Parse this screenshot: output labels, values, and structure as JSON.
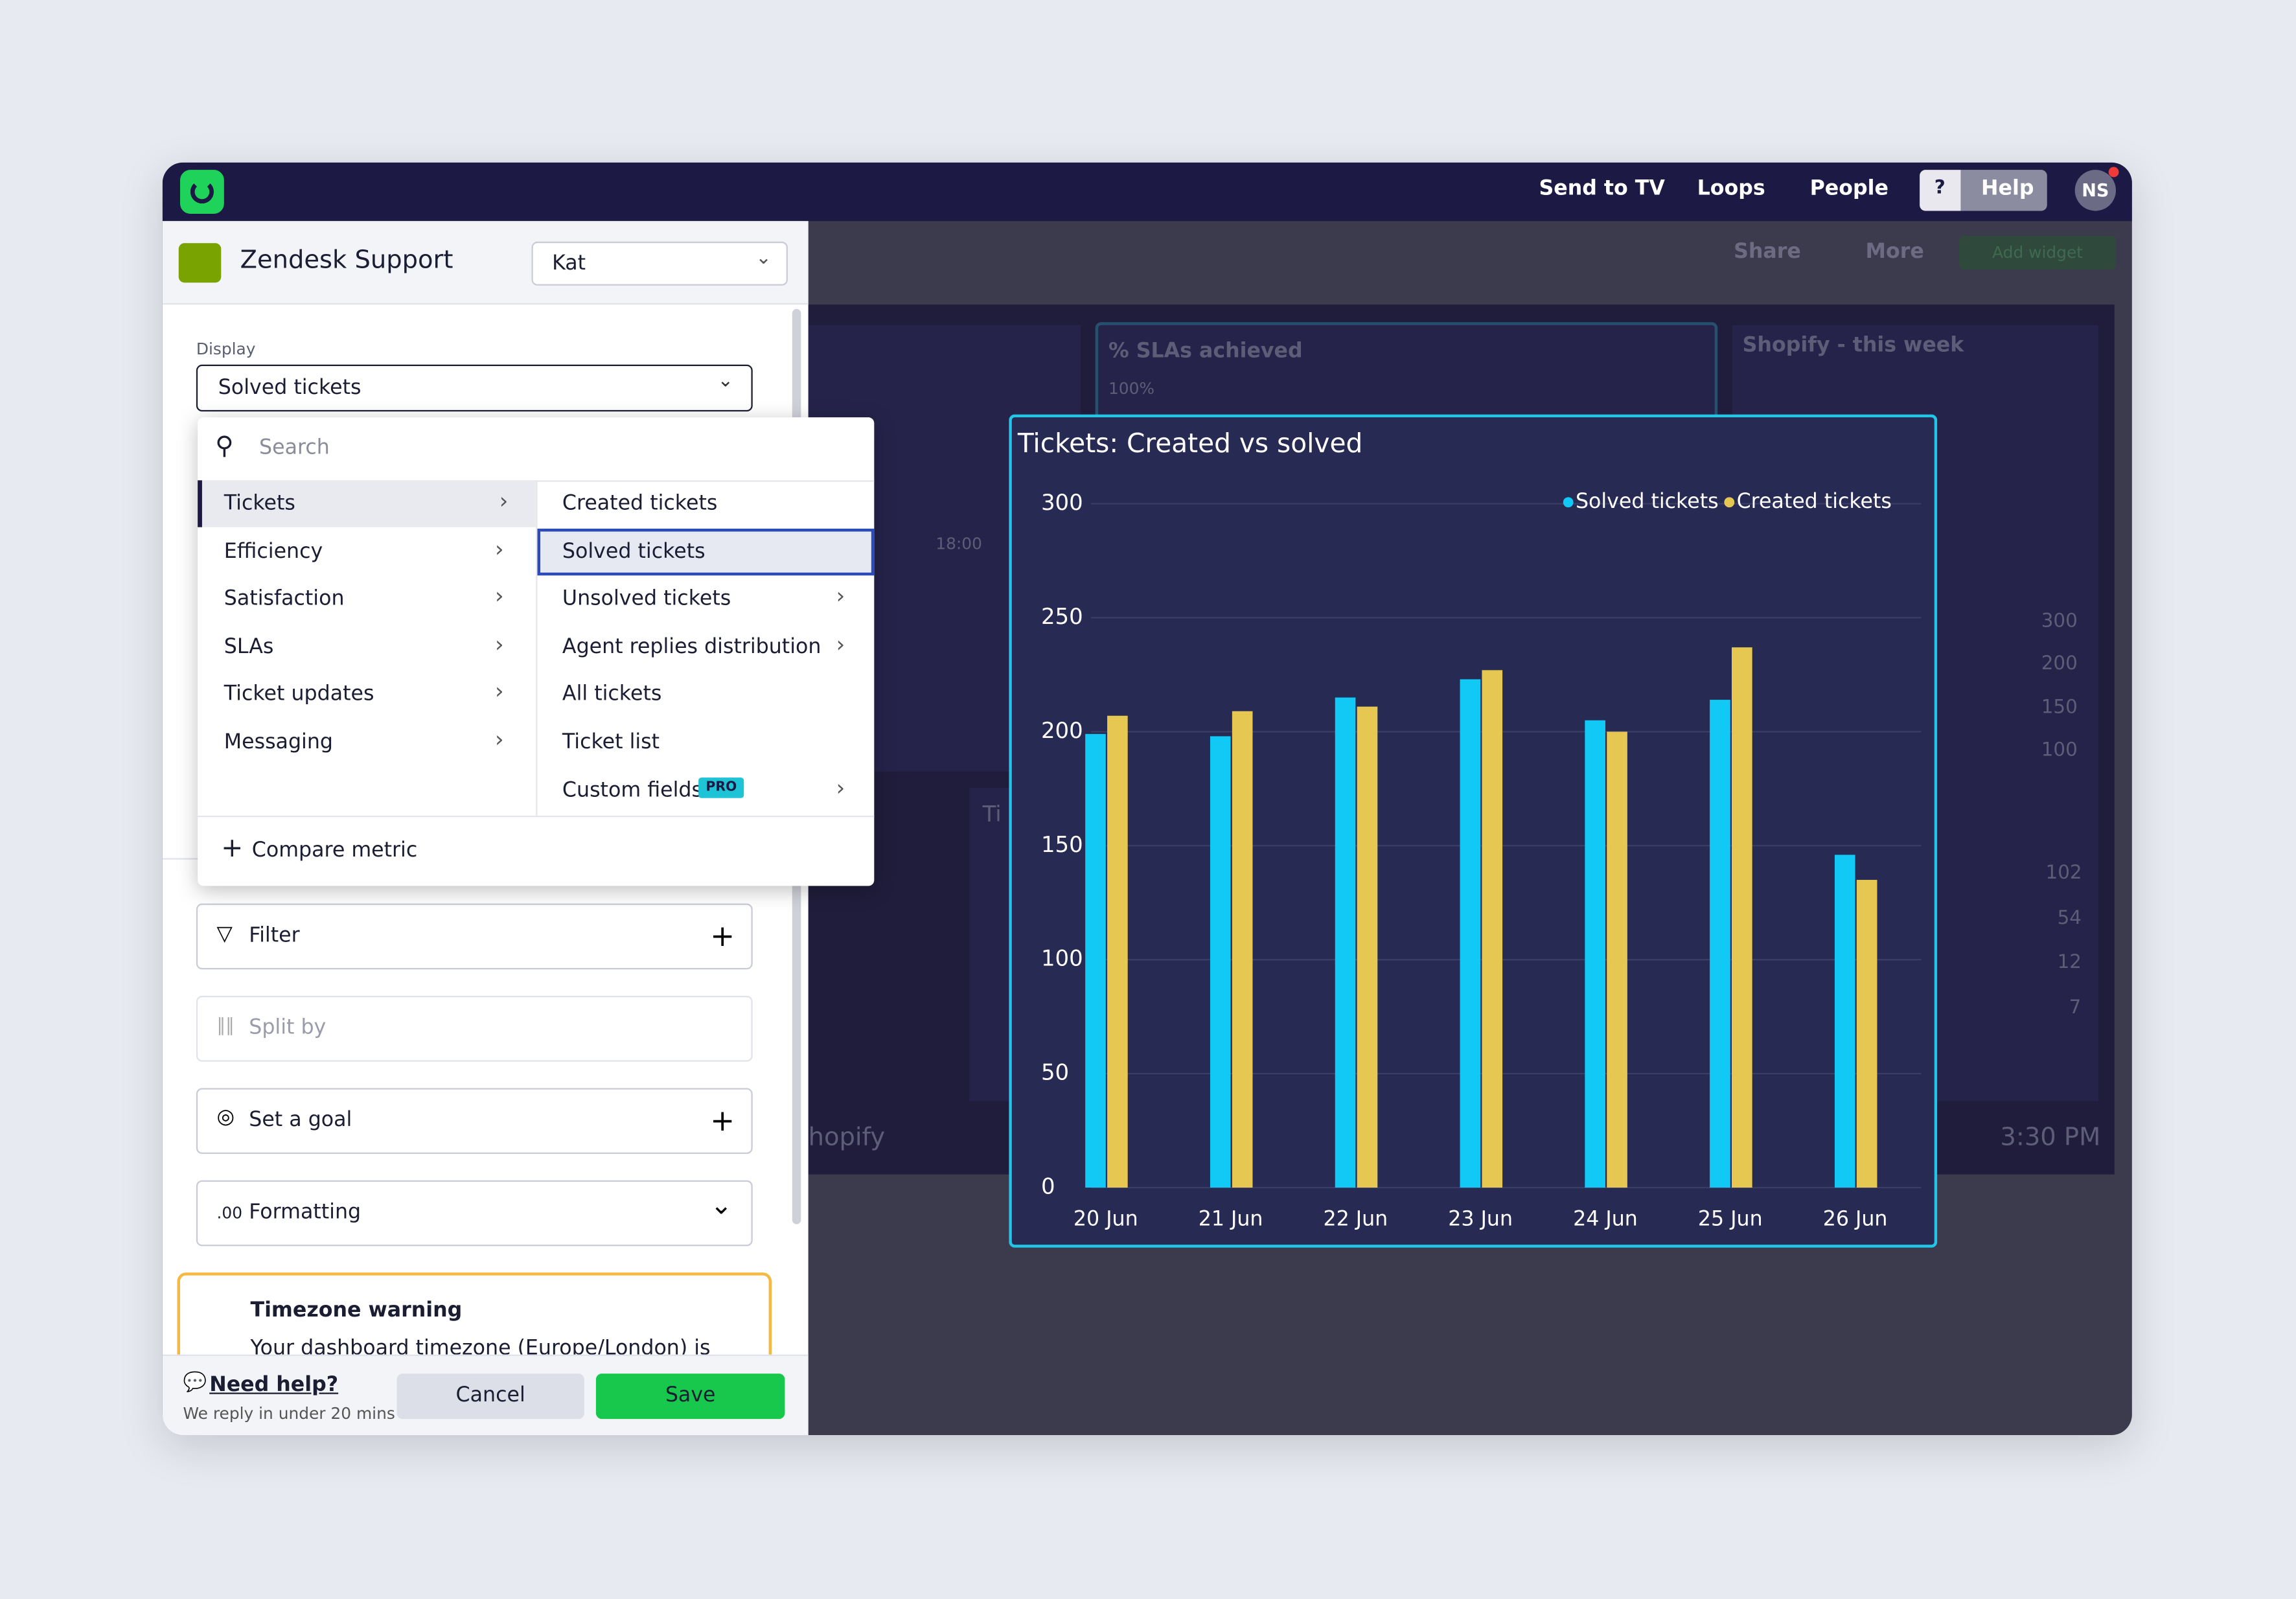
{
  "nav": {
    "links": [
      "Send to TV",
      "Loops",
      "People"
    ],
    "help_icon": "?",
    "help": "Help",
    "avatar": "NS"
  },
  "dashboard": {
    "share": "Share",
    "more": "More",
    "add_widget": "Add widget",
    "labels": [
      "% SLAs achieved",
      "100%",
      "18:00",
      "Shopify - this week",
      "300",
      "200",
      "150",
      "100",
      "102",
      "54",
      "12",
      "7",
      "hopify",
      "3:30 PM",
      "Ti"
    ]
  },
  "sidebar": {
    "title": "Zendesk Support",
    "account": "Kat",
    "display_label": "Display",
    "display_value": "Solved tickets",
    "search_placeholder": "Search",
    "categories": [
      "Tickets",
      "Efficiency",
      "Satisfaction",
      "SLAs",
      "Ticket updates",
      "Messaging"
    ],
    "metrics": [
      "Created tickets",
      "Solved tickets",
      "Unsolved tickets",
      "Agent replies distribution",
      "All tickets",
      "Ticket list",
      "Custom fields"
    ],
    "pro": "PRO",
    "compare": "Compare metric",
    "filter": "Filter",
    "split_by": "Split by",
    "goal": "Set a goal",
    "formatting_icon": ".00",
    "formatting": "Formatting",
    "warning_title": "Timezone warning",
    "warning_text": "Your dashboard timezone (Europe/London) is",
    "need_help": "Need help?",
    "reply": "We reply in under 20 mins",
    "cancel": "Cancel",
    "save": "Save"
  },
  "chart_data": {
    "type": "bar",
    "title": "Tickets: Created vs solved",
    "categories": [
      "20 Jun",
      "21 Jun",
      "22 Jun",
      "23 Jun",
      "24 Jun",
      "25 Jun",
      "26 Jun"
    ],
    "series": [
      {
        "name": "Solved tickets",
        "color": "#12c8f5",
        "values": [
          199,
          198,
          215,
          223,
          205,
          214,
          146
        ]
      },
      {
        "name": "Created tickets",
        "color": "#e5c752",
        "values": [
          207,
          209,
          211,
          227,
          200,
          237,
          135
        ]
      }
    ],
    "ylim": [
      0,
      300
    ],
    "yticks": [
      0,
      50,
      100,
      150,
      200,
      250,
      300
    ],
    "grid": true
  }
}
